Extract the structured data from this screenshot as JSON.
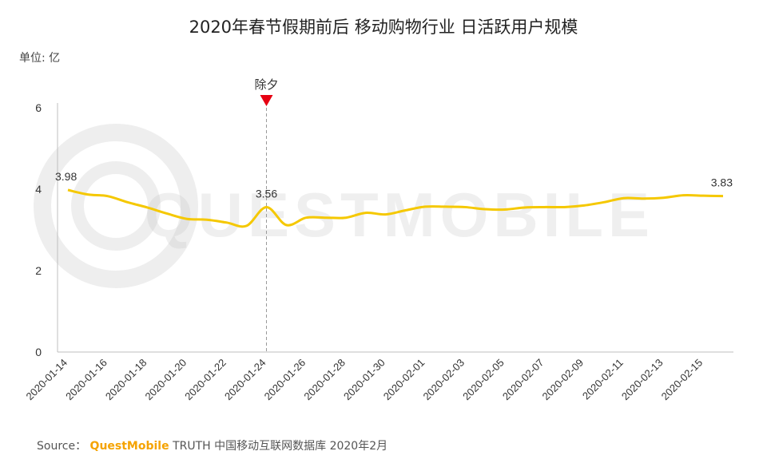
{
  "colors": {
    "line": "#f5c800",
    "marker": "#e60012",
    "axis": "#bfbfbf",
    "watermark": "#d9d9d9",
    "brand": "#f5a300"
  },
  "unit_label": "单位: 亿",
  "watermark_text": "QUESTMOBILE",
  "source": {
    "prefix": "Source：",
    "brand": "QuestMobile",
    "rest": "TRUTH 中国移动互联网数据库 2020年2月"
  },
  "chart_data": {
    "type": "line",
    "title": "2020年春节假期前后 移动购物行业 日活跃用户规模",
    "xlabel": "",
    "ylabel": "单位: 亿",
    "ylim": [
      0,
      6
    ],
    "y_ticks": [
      "0",
      "2",
      "4",
      "6"
    ],
    "x": [
      "2020-01-14",
      "2020-01-15",
      "2020-01-16",
      "2020-01-17",
      "2020-01-18",
      "2020-01-19",
      "2020-01-20",
      "2020-01-21",
      "2020-01-22",
      "2020-01-23",
      "2020-01-24",
      "2020-01-25",
      "2020-01-26",
      "2020-01-27",
      "2020-01-28",
      "2020-01-29",
      "2020-01-30",
      "2020-01-31",
      "2020-02-01",
      "2020-02-02",
      "2020-02-03",
      "2020-02-04",
      "2020-02-05",
      "2020-02-06",
      "2020-02-07",
      "2020-02-08",
      "2020-02-09",
      "2020-02-10",
      "2020-02-11",
      "2020-02-12",
      "2020-02-13",
      "2020-02-14",
      "2020-02-15",
      "2020-02-16"
    ],
    "x_tick_labels": [
      "2020-01-14",
      "2020-01-16",
      "2020-01-18",
      "2020-01-20",
      "2020-01-22",
      "2020-01-24",
      "2020-01-26",
      "2020-01-28",
      "2020-01-30",
      "2020-02-01",
      "2020-02-03",
      "2020-02-05",
      "2020-02-07",
      "2020-02-09",
      "2020-02-11",
      "2020-02-13",
      "2020-02-15"
    ],
    "series": [
      {
        "values": [
          3.98,
          3.87,
          3.83,
          3.68,
          3.55,
          3.4,
          3.27,
          3.25,
          3.18,
          3.1,
          3.56,
          3.12,
          3.3,
          3.3,
          3.3,
          3.42,
          3.38,
          3.48,
          3.57,
          3.57,
          3.56,
          3.51,
          3.5,
          3.55,
          3.56,
          3.56,
          3.6,
          3.68,
          3.78,
          3.77,
          3.79,
          3.85,
          3.84,
          3.83
        ]
      }
    ],
    "data_labels": [
      {
        "x": "2020-01-14",
        "text": "3.98"
      },
      {
        "x": "2020-01-24",
        "text": "3.56"
      },
      {
        "x": "2020-02-16",
        "text": "3.83"
      }
    ],
    "annotation": {
      "x": "2020-01-24",
      "text": "除夕"
    },
    "grid": false,
    "legend": "none"
  }
}
